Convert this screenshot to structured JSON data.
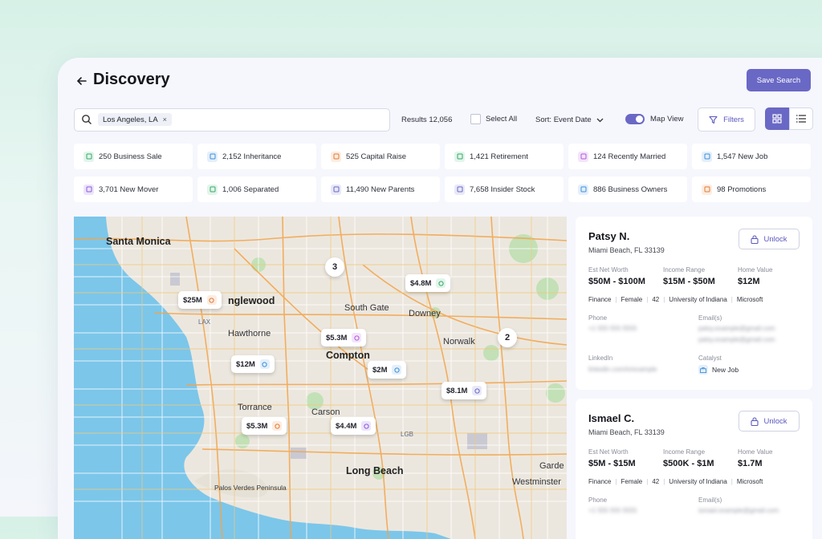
{
  "header": {
    "title": "Discovery",
    "save_label": "Save Search"
  },
  "toolbar": {
    "search_chip": "Los Angeles, LA",
    "results": "Results 12,056",
    "select_all": "Select All",
    "sort": "Sort: Event Date",
    "map_view": "Map View",
    "filters": "Filters"
  },
  "tags": [
    {
      "label": "250 Business Sale",
      "color": "#35a86b",
      "bg": "#e2f5ea",
      "icon": "store-icon"
    },
    {
      "label": "2,152 Inheritance",
      "color": "#3d8fd8",
      "bg": "#e3effb",
      "icon": "document-icon"
    },
    {
      "label": "525 Capital Raise",
      "color": "#e07a35",
      "bg": "#fdecdf",
      "icon": "dollar-icon"
    },
    {
      "label": "1,421 Retirement",
      "color": "#35a86b",
      "bg": "#e2f5ea",
      "icon": "clock-icon"
    },
    {
      "label": "124 Recently Married",
      "color": "#b05ad8",
      "bg": "#f3e4fb",
      "icon": "diamond-icon"
    },
    {
      "label": "1,547 New Job",
      "color": "#3d8fd8",
      "bg": "#e3effb",
      "icon": "briefcase-icon"
    },
    {
      "label": "3,701 New Mover",
      "color": "#8b5ad8",
      "bg": "#ece4fb",
      "icon": "car-icon"
    },
    {
      "label": "1,006 Separated",
      "color": "#35a86b",
      "bg": "#e2f5ea",
      "icon": "split-icon"
    },
    {
      "label": "11,490 New Parents",
      "color": "#6a68c5",
      "bg": "#e8e8f8",
      "icon": "baby-icon"
    },
    {
      "label": "7,658 Insider Stock",
      "color": "#6a68c5",
      "bg": "#e8e8f8",
      "icon": "tag-icon"
    },
    {
      "label": "886 Business Owners",
      "color": "#3d8fd8",
      "bg": "#e3effb",
      "icon": "building-icon"
    },
    {
      "label": "98 Promotions",
      "color": "#e07a35",
      "bg": "#fdecdf",
      "icon": "trend-up-icon"
    }
  ],
  "map": {
    "cities": [
      "Santa Monica",
      "nglewood",
      "Hawthorne",
      "South Gate",
      "Downey",
      "Compton",
      "Norwalk",
      "Torrance",
      "Carson",
      "Long Beach",
      "Palos Verdes Peninsula",
      "Garde",
      "Westminster",
      "LAX",
      "LGB"
    ],
    "pins": [
      {
        "label": "$25M",
        "color": "#e07a35",
        "bg": "#fdecdf"
      },
      {
        "label": "$4.8M",
        "color": "#35a86b",
        "bg": "#e2f5ea"
      },
      {
        "label": "$5.3M",
        "color": "#b05ad8",
        "bg": "#f3e4fb"
      },
      {
        "label": "$12M",
        "color": "#3d8fd8",
        "bg": "#e3effb"
      },
      {
        "label": "$2M",
        "color": "#3d8fd8",
        "bg": "#e3effb"
      },
      {
        "label": "$8.1M",
        "color": "#6a68c5",
        "bg": "#e8e8f8"
      },
      {
        "label": "$5.3M",
        "color": "#e07a35",
        "bg": "#fdecdf"
      },
      {
        "label": "$4.4M",
        "color": "#8b5ad8",
        "bg": "#ece4fb"
      }
    ],
    "clusters": [
      "3",
      "2"
    ]
  },
  "profiles": [
    {
      "name": "Patsy N.",
      "address": "Miami Beach, FL 33139",
      "unlock": "Unlock",
      "labels": {
        "networth": "Est Net Worth",
        "income": "Income Range",
        "home": "Home Value",
        "phone": "Phone",
        "email": "Email(s)",
        "linkedin": "LinkedIn",
        "catalyst": "Catalyst"
      },
      "networth": "$50M - $100M",
      "income": "$15M - $50M",
      "home": "$12M",
      "meta": [
        "Finance",
        "Female",
        "42",
        "University of Indiana",
        "Microsoft"
      ],
      "phone": "+1 555 555 5555",
      "email1": "patsy.example@gmail.com",
      "email2": "patsy.example@gmail.com",
      "linkedin": "linkedin.com/in/example",
      "catalyst": "New Job"
    },
    {
      "name": "Ismael C.",
      "address": "Miami Beach, FL 33139",
      "unlock": "Unlock",
      "labels": {
        "networth": "Est Net Worth",
        "income": "Income Range",
        "home": "Home Value",
        "phone": "Phone",
        "email": "Email(s)"
      },
      "networth": "$5M - $15M",
      "income": "$500K - $1M",
      "home": "$1.7M",
      "meta": [
        "Finance",
        "Female",
        "42",
        "University of Indiana",
        "Microsoft"
      ],
      "phone": "+1 555 555 5555",
      "email1": "ismael.example@gmail.com"
    }
  ]
}
